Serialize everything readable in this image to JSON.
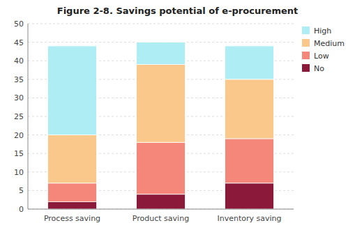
{
  "chart_data": {
    "type": "bar",
    "stacked": true,
    "title": "Figure 2-8. Savings potential of e-procurement",
    "categories": [
      "Process saving",
      "Product saving",
      "Inventory saving"
    ],
    "series": [
      {
        "name": "No",
        "color": "#8B1A3A",
        "values": [
          2,
          4,
          7
        ]
      },
      {
        "name": "Low",
        "color": "#F4877A",
        "values": [
          5,
          14,
          12
        ]
      },
      {
        "name": "Medium",
        "color": "#F9C88A",
        "values": [
          13,
          21,
          16
        ]
      },
      {
        "name": "High",
        "color": "#AEEDF4",
        "values": [
          24,
          6,
          9
        ]
      }
    ],
    "ylim": [
      0,
      50
    ],
    "yticks": [
      0,
      5,
      10,
      15,
      20,
      25,
      30,
      35,
      40,
      45,
      50
    ],
    "grid": true,
    "legend": "right"
  }
}
